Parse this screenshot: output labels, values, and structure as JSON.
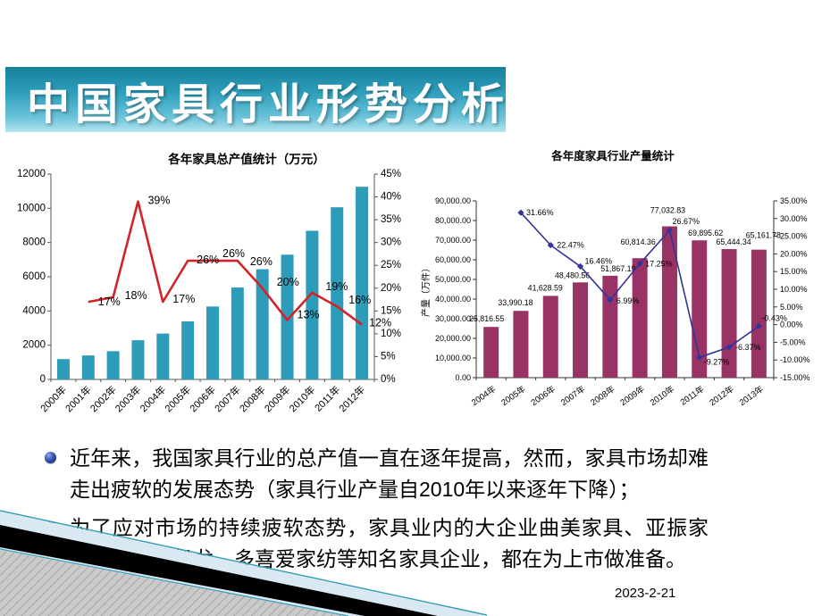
{
  "slide": {
    "title": "中国家具行业形势分析",
    "date": "2023-2-21",
    "bullets": [
      "近年来，我国家具行业的总产值一直在逐年提高，然而，家具市场却难走出疲软的发展态势（家具行业产量自2010年以来逐年下降）；",
      "为了应对市场的持续疲软态势，家具业内的大企业曲美家具、亚振家具、红星美凯龙、多喜爱家纺等知名家具企业，都在为上市做准备。"
    ]
  },
  "chart_data": [
    {
      "type": "bar",
      "subtype": "bar-line-combo",
      "title": "各年家具总产值统计（万元）",
      "categories": [
        "2000年",
        "2001年",
        "2002年",
        "2003年",
        "2004年",
        "2005年",
        "2006年",
        "2007年",
        "2008年",
        "2009年",
        "2010年",
        "2011年",
        "2012年"
      ],
      "bars": {
        "values": [
          1190,
          1400,
          1650,
          2290,
          2680,
          3390,
          4260,
          5370,
          6440,
          7290,
          8690,
          10060,
          11260
        ]
      },
      "line": {
        "start_index": 1,
        "values": [
          17,
          18,
          39,
          17,
          26,
          26,
          26,
          20,
          13,
          19,
          16,
          12
        ],
        "labels": [
          "17%",
          "18%",
          "39%",
          "17%",
          "26%",
          "26%",
          "26%",
          "20%",
          "13%",
          "19%",
          "16%",
          "12%"
        ]
      },
      "left_axis": {
        "min": 0,
        "max": 12000,
        "step": 2000,
        "labels": [
          "0",
          "2000",
          "4000",
          "6000",
          "8000",
          "10000",
          "12000"
        ]
      },
      "right_axis": {
        "min": 0,
        "max": 45,
        "step": 5,
        "labels": [
          "0%",
          "5%",
          "10%",
          "15%",
          "20%",
          "25%",
          "30%",
          "35%",
          "40%",
          "45%"
        ]
      },
      "colors": {
        "bar": "#2d9cb8",
        "line": "#d2232a"
      },
      "legend": "none",
      "grid": "off"
    },
    {
      "type": "bar",
      "subtype": "bar-line-combo",
      "title": "各年度家具行业产量统计",
      "ylabel": "产量（万件）",
      "categories": [
        "2004年",
        "2005年",
        "2006年",
        "2007年",
        "2008年",
        "2009年",
        "2010年",
        "2011年",
        "2012年",
        "2013年"
      ],
      "bars": {
        "values": [
          25816.55,
          33990.18,
          41628.59,
          48480.56,
          51867.19,
          60814.36,
          77032.83,
          69895.62,
          65444.34,
          65161.78
        ],
        "labels": [
          "25,816.55",
          "33,990.18",
          "41,628.59",
          "48,480.56",
          "51,867.19",
          "60,814.36",
          "77,032.83",
          "69,895.62",
          "65,444.34",
          "65,161.78"
        ]
      },
      "line": {
        "start_index": 1,
        "values": [
          31.66,
          22.47,
          16.46,
          6.99,
          17.25,
          26.67,
          -9.27,
          -6.37,
          -0.43
        ],
        "labels": [
          "31.66%",
          "22.47%",
          "16.46%",
          "6.99%",
          "17.25%",
          "26.67%",
          "-9.27%",
          "-6.37%",
          "-0.43%"
        ]
      },
      "left_axis": {
        "min": 0,
        "max": 90000,
        "step": 10000,
        "labels": [
          "0.00",
          "10,000.00",
          "20,000.00",
          "30,000.00",
          "40,000.00",
          "50,000.00",
          "60,000.00",
          "70,000.00",
          "80,000.00",
          "90,000.00"
        ]
      },
      "right_axis": {
        "min": -15,
        "max": 35,
        "step": 5,
        "labels": [
          "-15.00%",
          "-10.00%",
          "-5.00%",
          "0.00%",
          "5.00%",
          "10.00%",
          "15.00%",
          "20.00%",
          "25.00%",
          "30.00%",
          "35.00%"
        ]
      },
      "colors": {
        "bar": "#993366",
        "line": "#333399"
      },
      "legend": "none",
      "grid": "off"
    }
  ]
}
